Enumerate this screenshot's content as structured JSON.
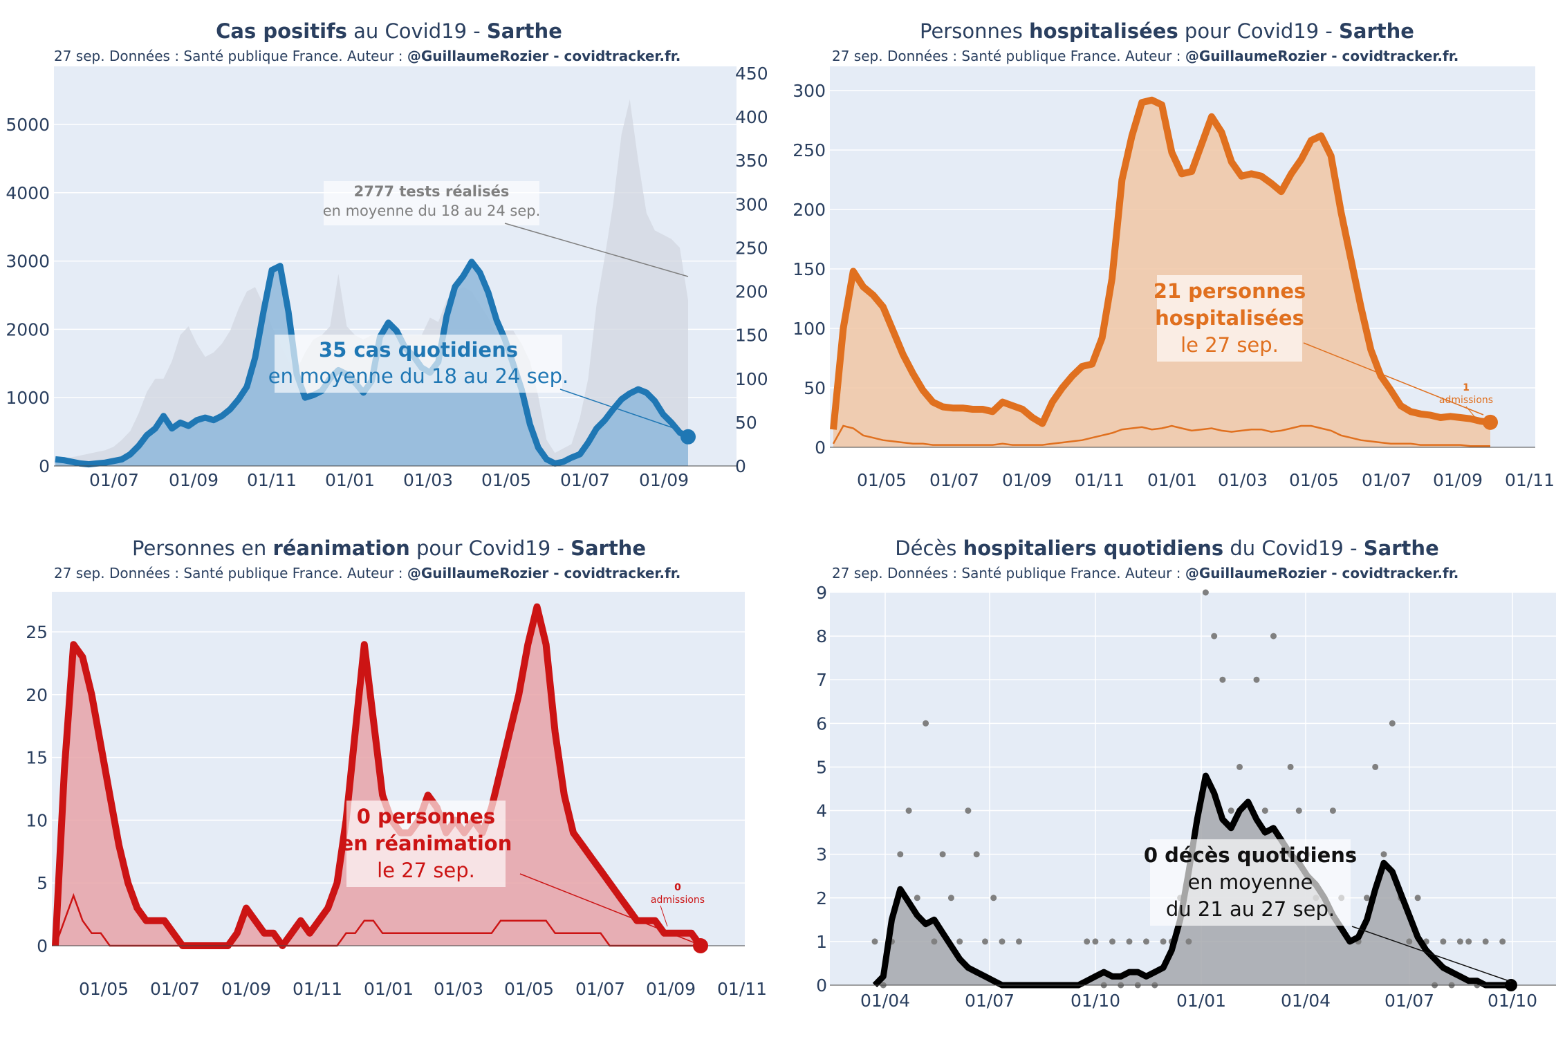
{
  "subtitle": {
    "text": "27 sep. Données : Santé publique France. Auteur : ",
    "author": "@GuillaumeRozier - covidtracker.fr."
  },
  "charts": [
    {
      "id": "cases",
      "title": {
        "pre": "",
        "bold1": "Cas positifs",
        "mid": " au Covid19 - ",
        "bold2": "Sarthe"
      },
      "annotation_main": {
        "line1": "35 cas quotidiens",
        "line2": "en moyenne du 18 au 24 sep."
      },
      "annotation_tests": {
        "line1": "2777 tests réalisés",
        "line2": "en moyenne du 18 au 24 sep."
      }
    },
    {
      "id": "hosp",
      "title": {
        "pre": "Personnes ",
        "bold1": "hospitalisées",
        "mid": " pour Covid19 - ",
        "bold2": "Sarthe"
      },
      "annotation_main": {
        "line1": "21 personnes",
        "line2": "hospitalisées",
        "line3": "le 27 sep."
      },
      "annotation_adm": {
        "line1": "1",
        "line2": "admissions"
      }
    },
    {
      "id": "rea",
      "title": {
        "pre": "Personnes en ",
        "bold1": "réanimation",
        "mid": " pour Covid19 - ",
        "bold2": "Sarthe"
      },
      "annotation_main": {
        "line1": "0 personnes",
        "line2": "en réanimation",
        "line3": "le 27 sep."
      },
      "annotation_adm": {
        "line1": "0",
        "line2": "admissions"
      }
    },
    {
      "id": "deaths",
      "title": {
        "pre": "Décès ",
        "bold1": "hospitaliers quotidiens",
        "mid": " du Covid19 - ",
        "bold2": "Sarthe"
      },
      "annotation_main": {
        "line1": "0 décès quotidiens",
        "line2": "en moyenne",
        "line3": "du 21 au 27 sep."
      }
    }
  ],
  "chart_data": [
    {
      "type": "line",
      "xticks": [
        "01/07",
        "01/09",
        "01/11",
        "01/01",
        "01/03",
        "01/05",
        "01/07",
        "01/09"
      ],
      "yticks_left": [
        "0",
        "1000",
        "2000",
        "3000",
        "4000",
        "5000"
      ],
      "yticks_right": [
        "0",
        "50",
        "100",
        "150",
        "200",
        "250",
        "300",
        "350",
        "400",
        "450"
      ],
      "ylim_left": [
        0,
        5800
      ],
      "ylim_right": [
        0,
        450
      ],
      "colors": {
        "line": "#1f77b4",
        "fill": "#8fb8db",
        "tests": "#d2d7e0"
      },
      "series": [
        {
          "values": [
            8,
            7,
            5,
            3,
            2,
            3,
            4,
            6,
            8,
            14,
            24,
            37,
            45,
            60,
            45,
            52,
            48,
            55,
            58,
            55,
            60,
            68,
            80,
            95,
            130,
            185,
            235,
            240,
            185,
            110,
            82,
            85,
            90,
            105,
            115,
            110,
            100,
            88,
            102,
            155,
            172,
            162,
            142,
            132,
            118,
            112,
            125,
            180,
            215,
            228,
            245,
            232,
            208,
            175,
            152,
            122,
            92,
            50,
            22,
            8,
            3,
            5,
            10,
            14,
            28,
            45,
            55,
            68,
            80,
            87,
            92,
            88,
            78,
            62,
            52,
            40,
            35
          ]
        },
        {
          "values": [
            5,
            8,
            10,
            12,
            14,
            16,
            18,
            22,
            30,
            40,
            60,
            85,
            100,
            100,
            120,
            150,
            160,
            140,
            125,
            130,
            140,
            155,
            180,
            200,
            205,
            185,
            160,
            140,
            120,
            110,
            130,
            145,
            150,
            160,
            220,
            160,
            150,
            145,
            150,
            150,
            165,
            155,
            150,
            150,
            150,
            170,
            165,
            190,
            200,
            205,
            200,
            185,
            170,
            150,
            155,
            155,
            140,
            120,
            80,
            30,
            15,
            20,
            25,
            55,
            100,
            185,
            240,
            300,
            380,
            420,
            350,
            290,
            270,
            265,
            260,
            250,
            190
          ]
        }
      ]
    },
    {
      "type": "line",
      "xticks": [
        "01/05",
        "01/07",
        "01/09",
        "01/11",
        "01/01",
        "01/03",
        "01/05",
        "01/07",
        "01/09",
        "01/11"
      ],
      "yticks": [
        "0",
        "50",
        "100",
        "150",
        "200",
        "250",
        "300"
      ],
      "ylim": [
        0,
        305
      ],
      "colors": {
        "line": "#e0701f",
        "fill": "#f1c7a5"
      },
      "series": [
        {
          "values": [
            15,
            100,
            148,
            135,
            128,
            118,
            98,
            78,
            62,
            48,
            38,
            34,
            33,
            33,
            32,
            32,
            30,
            38,
            35,
            32,
            25,
            20,
            38,
            50,
            60,
            68,
            70,
            92,
            142,
            225,
            262,
            290,
            292,
            288,
            248,
            230,
            232,
            255,
            278,
            265,
            240,
            228,
            230,
            228,
            222,
            215,
            230,
            242,
            258,
            262,
            245,
            198,
            158,
            118,
            82,
            60,
            48,
            35,
            30,
            28,
            27,
            25,
            26,
            25,
            24,
            22,
            21
          ]
        },
        {
          "values": [
            3,
            18,
            16,
            10,
            8,
            6,
            5,
            4,
            3,
            3,
            2,
            2,
            2,
            2,
            2,
            2,
            2,
            3,
            2,
            2,
            2,
            2,
            3,
            4,
            5,
            6,
            8,
            10,
            12,
            15,
            16,
            17,
            15,
            16,
            18,
            16,
            14,
            15,
            16,
            14,
            13,
            14,
            15,
            15,
            13,
            14,
            16,
            18,
            18,
            16,
            14,
            10,
            8,
            6,
            5,
            4,
            3,
            3,
            3,
            2,
            2,
            2,
            2,
            2,
            1,
            1,
            1
          ]
        }
      ]
    },
    {
      "type": "line",
      "xticks": [
        "01/05",
        "01/07",
        "01/09",
        "01/11",
        "01/01",
        "01/03",
        "01/05",
        "01/07",
        "01/09",
        "01/11"
      ],
      "yticks": [
        "0",
        "5",
        "10",
        "15",
        "20",
        "25"
      ],
      "ylim": [
        0,
        28
      ],
      "colors": {
        "line": "#cc1414",
        "fill": "#e8a3a8"
      },
      "series": [
        {
          "values": [
            0,
            14,
            24,
            23,
            20,
            16,
            12,
            8,
            5,
            3,
            2,
            2,
            2,
            1,
            0,
            0,
            0,
            0,
            0,
            0,
            1,
            3,
            2,
            1,
            1,
            0,
            1,
            2,
            1,
            2,
            3,
            5,
            10,
            17,
            24,
            18,
            12,
            10,
            9,
            9,
            10,
            12,
            11,
            9,
            10,
            9,
            10,
            9,
            11,
            14,
            17,
            20,
            24,
            27,
            24,
            17,
            12,
            9,
            8,
            7,
            6,
            5,
            4,
            3,
            2,
            2,
            2,
            1,
            1,
            1,
            1,
            0
          ]
        },
        {
          "values": [
            0,
            2,
            4,
            2,
            1,
            1,
            0,
            0,
            0,
            0,
            0,
            0,
            0,
            0,
            0,
            0,
            0,
            0,
            0,
            0,
            0,
            0,
            0,
            0,
            0,
            0,
            0,
            0,
            0,
            0,
            0,
            0,
            1,
            1,
            2,
            2,
            1,
            1,
            1,
            1,
            1,
            1,
            1,
            1,
            1,
            1,
            1,
            1,
            1,
            2,
            2,
            2,
            2,
            2,
            2,
            1,
            1,
            1,
            1,
            1,
            1,
            0,
            0,
            0,
            0,
            0,
            0,
            0,
            0,
            0,
            0,
            0
          ]
        }
      ]
    },
    {
      "type": "scatter",
      "xticks": [
        "01/04",
        "01/07",
        "01/10",
        "01/01",
        "01/04",
        "01/07",
        "01/10"
      ],
      "yticks": [
        "0",
        "1",
        "2",
        "3",
        "4",
        "5",
        "6",
        "7",
        "8",
        "9"
      ],
      "ylim": [
        0,
        9
      ],
      "colors": {
        "line": "#000000",
        "fill": "#a6a8ad",
        "dots": "#808080"
      },
      "series": [
        {
          "values": [
            0,
            0.2,
            1.5,
            2.2,
            1.9,
            1.6,
            1.4,
            1.5,
            1.2,
            0.9,
            0.6,
            0.4,
            0.3,
            0.2,
            0.1,
            0,
            0,
            0,
            0,
            0,
            0,
            0,
            0,
            0,
            0,
            0.1,
            0.2,
            0.3,
            0.2,
            0.2,
            0.3,
            0.3,
            0.2,
            0.3,
            0.4,
            0.8,
            1.5,
            2.6,
            3.8,
            4.8,
            4.4,
            3.8,
            3.6,
            4.0,
            4.2,
            3.8,
            3.5,
            3.6,
            3.3,
            3.0,
            2.8,
            2.5,
            2.3,
            2.0,
            1.6,
            1.3,
            1.0,
            1.1,
            1.5,
            2.2,
            2.8,
            2.6,
            2.1,
            1.6,
            1.1,
            0.8,
            0.6,
            0.4,
            0.3,
            0.2,
            0.1,
            0.1,
            0,
            0,
            0,
            0
          ]
        },
        {
          "values": [
            1,
            0,
            1,
            3,
            4,
            2,
            6,
            1,
            3,
            2,
            1,
            4,
            3,
            1,
            2,
            1,
            0,
            1,
            0,
            0,
            0,
            0,
            0,
            0,
            0,
            1,
            1,
            0,
            1,
            0,
            1,
            0,
            1,
            0,
            1,
            1,
            2,
            1,
            3,
            9,
            8,
            7,
            4,
            5,
            3,
            7,
            4,
            8,
            3,
            5,
            4,
            3,
            2,
            3,
            4,
            2,
            3,
            1,
            2,
            5,
            3,
            6,
            2,
            1,
            2,
            1,
            0,
            1,
            0,
            1,
            1,
            0,
            1,
            0,
            1,
            0
          ]
        }
      ]
    }
  ]
}
